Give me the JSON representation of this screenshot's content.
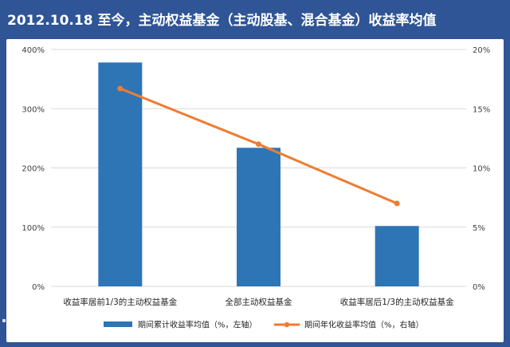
{
  "title": "2012.10.18 至今，主动权益基金（主动股基、混合基金）收益率均值",
  "colors": {
    "background": "#2f5597",
    "bar": "#2e75b6",
    "line": "#ed7d31",
    "grid": "#d9d9d9",
    "title_text": "#ffffff"
  },
  "chart_data": {
    "type": "bar",
    "title": "2012.10.18 至今，主动权益基金（主动股基、混合基金）收益率均值",
    "categories": [
      "收益率居前1/3的主动权益基金",
      "全部主动权益基金",
      "收益率居后1/3的主动权益基金"
    ],
    "series": [
      {
        "name": "期间累计收益率均值（%，左轴）",
        "type": "bar",
        "axis": "left",
        "values": [
          378,
          234,
          102
        ]
      },
      {
        "name": "期间年化收益率均值（%，右轴）",
        "type": "line",
        "axis": "right",
        "values": [
          16.7,
          12.0,
          7.0
        ]
      }
    ],
    "y_left": {
      "ylim": [
        0,
        400
      ],
      "ticks": [
        0,
        100,
        200,
        300,
        400
      ],
      "tick_labels": [
        "0%",
        "100%",
        "200%",
        "300%",
        "400%"
      ]
    },
    "y_right": {
      "ylim": [
        0,
        20
      ],
      "ticks": [
        0,
        5,
        10,
        15,
        20
      ],
      "tick_labels": [
        "0%",
        "5%",
        "10%",
        "15%",
        "20%"
      ]
    },
    "xlabel": "",
    "ylabel": "",
    "grid": true,
    "legend": "bottom"
  }
}
